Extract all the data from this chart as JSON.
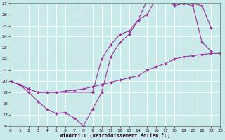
{
  "xlabel": "Windchill (Refroidissement éolien,°C)",
  "bg_color": "#c8eaea",
  "grid_color": "#ffffff",
  "line_color": "#993399",
  "xlim": [
    0,
    23
  ],
  "ylim": [
    16,
    27
  ],
  "yticks": [
    16,
    17,
    18,
    19,
    20,
    21,
    22,
    23,
    24,
    25,
    26,
    27
  ],
  "xticks": [
    0,
    1,
    2,
    3,
    4,
    5,
    6,
    7,
    8,
    9,
    10,
    11,
    12,
    13,
    14,
    15,
    16,
    17,
    18,
    19,
    20,
    21,
    22,
    23
  ],
  "series": [
    {
      "x": [
        0,
        1,
        2,
        3,
        4,
        5,
        6,
        7,
        8,
        9,
        10,
        11,
        12,
        13,
        14,
        15,
        16,
        17,
        18,
        19,
        20,
        21,
        22
      ],
      "y": [
        20,
        19.7,
        19.0,
        18.2,
        17.5,
        17.1,
        17.2,
        16.7,
        16.0,
        17.5,
        19.0,
        22.2,
        23.5,
        24.2,
        25.5,
        27.3,
        27.5,
        27.3,
        26.8,
        27.0,
        26.8,
        23.5,
        22.7
      ]
    },
    {
      "x": [
        0,
        1,
        2,
        3,
        4,
        5,
        6,
        7,
        8,
        9,
        10,
        11,
        12,
        13,
        14,
        15,
        16,
        17,
        18,
        19,
        20,
        21,
        22,
        23
      ],
      "y": [
        20,
        19.7,
        19.3,
        19.0,
        19.0,
        19.0,
        19.1,
        19.2,
        19.3,
        19.5,
        19.7,
        19.9,
        20.1,
        20.3,
        20.5,
        21.0,
        21.3,
        21.6,
        22.0,
        22.2,
        22.3,
        22.4,
        22.5,
        22.5
      ]
    },
    {
      "x": [
        0,
        1,
        2,
        3,
        9,
        10,
        11,
        12,
        13,
        14,
        15,
        16,
        17,
        18,
        19,
        20,
        21,
        22
      ],
      "y": [
        20,
        19.7,
        19.3,
        19.0,
        19.0,
        22.0,
        23.3,
        24.2,
        24.5,
        25.5,
        26.0,
        27.5,
        27.3,
        27.0,
        27.0,
        27.0,
        26.8,
        24.8
      ]
    }
  ]
}
